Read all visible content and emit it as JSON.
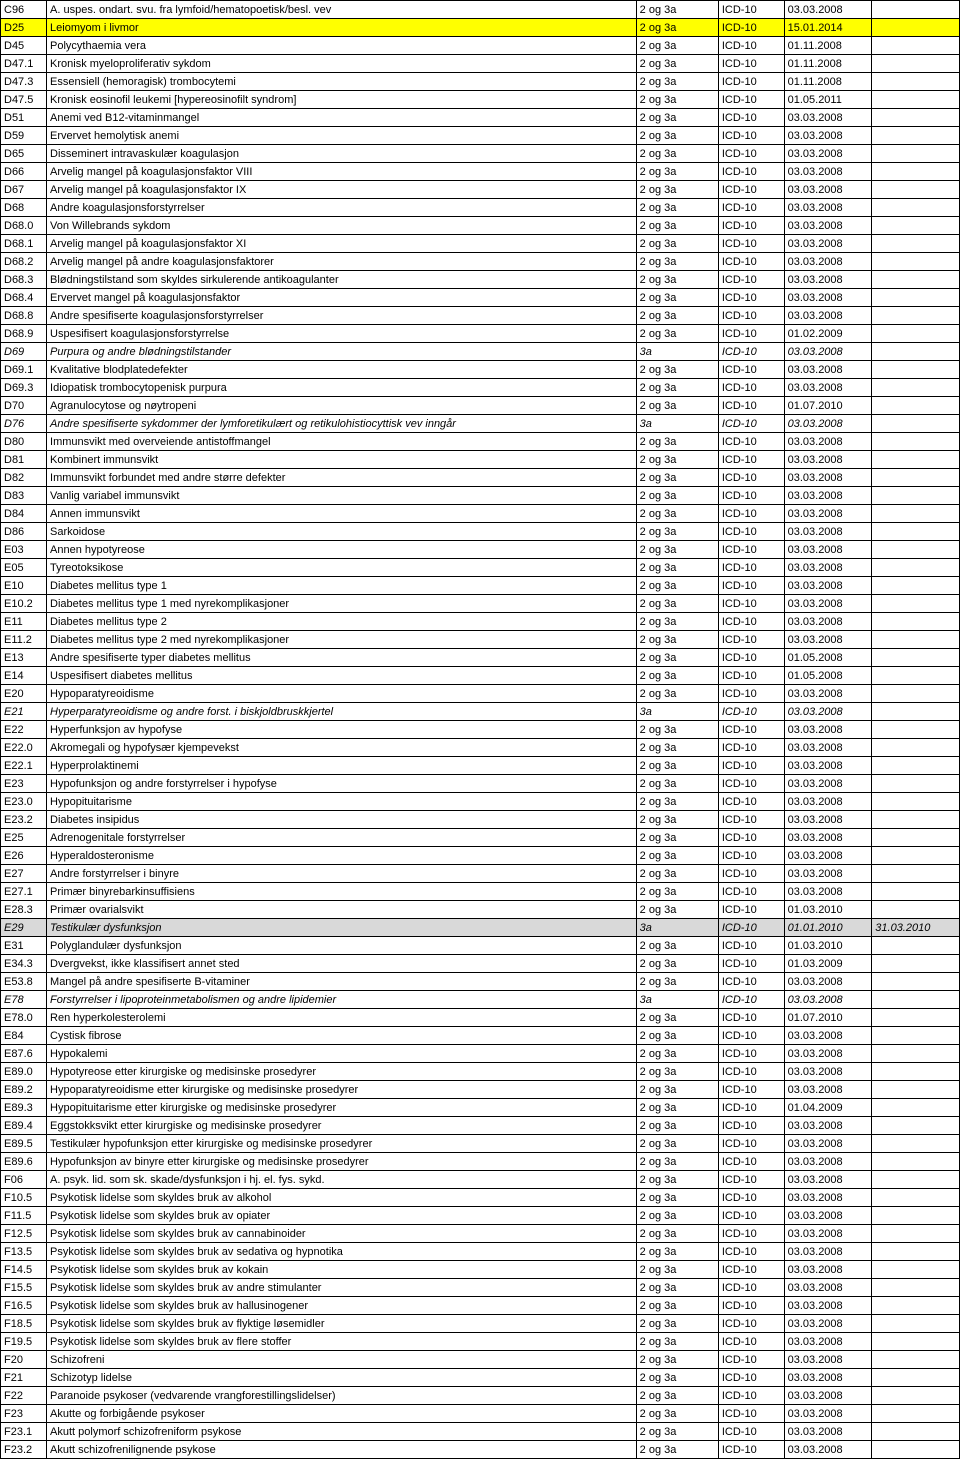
{
  "colors": {
    "yellow": "#ffff00",
    "grey": "#d9d9d9",
    "white": "#ffffff",
    "border": "#000000"
  },
  "rows": [
    {
      "code": "C96",
      "desc": "A. uspes. ondart. svu. fra lymfoid/hematopoetisk/besl. vev",
      "para": "2 og 3a",
      "icd": "ICD-10",
      "date": "03.03.2008",
      "extra": ""
    },
    {
      "code": "D25",
      "desc": "Leiomyom i livmor",
      "para": "2 og 3a",
      "icd": "ICD-10",
      "date": "15.01.2014",
      "extra": "",
      "bg": "yellow"
    },
    {
      "code": "D45",
      "desc": "Polycythaemia vera",
      "para": "2 og 3a",
      "icd": "ICD-10",
      "date": "01.11.2008",
      "extra": ""
    },
    {
      "code": "D47.1",
      "desc": "Kronisk myeloproliferativ sykdom",
      "para": "2 og 3a",
      "icd": "ICD-10",
      "date": "01.11.2008",
      "extra": ""
    },
    {
      "code": "D47.3",
      "desc": "Essensiell (hemoragisk) trombocytemi",
      "para": "2 og 3a",
      "icd": "ICD-10",
      "date": "01.11.2008",
      "extra": ""
    },
    {
      "code": "D47.5",
      "desc": "Kronisk eosinofil leukemi [hypereosinofilt syndrom]",
      "para": "2 og 3a",
      "icd": "ICD-10",
      "date": "01.05.2011",
      "extra": ""
    },
    {
      "code": "D51",
      "desc": "Anemi ved B12-vitaminmangel",
      "para": "2 og 3a",
      "icd": "ICD-10",
      "date": "03.03.2008",
      "extra": ""
    },
    {
      "code": "D59",
      "desc": "Ervervet hemolytisk anemi",
      "para": "2 og 3a",
      "icd": "ICD-10",
      "date": "03.03.2008",
      "extra": ""
    },
    {
      "code": "D65",
      "desc": "Disseminert intravaskulær koagulasjon",
      "para": "2 og 3a",
      "icd": "ICD-10",
      "date": "03.03.2008",
      "extra": ""
    },
    {
      "code": "D66",
      "desc": "Arvelig mangel på koagulasjonsfaktor VIII",
      "para": "2 og 3a",
      "icd": "ICD-10",
      "date": "03.03.2008",
      "extra": ""
    },
    {
      "code": "D67",
      "desc": "Arvelig mangel på koagulasjonsfaktor IX",
      "para": "2 og 3a",
      "icd": "ICD-10",
      "date": "03.03.2008",
      "extra": ""
    },
    {
      "code": "D68",
      "desc": "Andre koagulasjonsforstyrrelser",
      "para": "2 og 3a",
      "icd": "ICD-10",
      "date": "03.03.2008",
      "extra": ""
    },
    {
      "code": "D68.0",
      "desc": "Von Willebrands sykdom",
      "para": "2 og 3a",
      "icd": "ICD-10",
      "date": "03.03.2008",
      "extra": ""
    },
    {
      "code": "D68.1",
      "desc": "Arvelig mangel på koagulasjonsfaktor XI",
      "para": "2 og 3a",
      "icd": "ICD-10",
      "date": "03.03.2008",
      "extra": ""
    },
    {
      "code": "D68.2",
      "desc": "Arvelig mangel på andre koagulasjonsfaktorer",
      "para": "2 og 3a",
      "icd": "ICD-10",
      "date": "03.03.2008",
      "extra": ""
    },
    {
      "code": "D68.3",
      "desc": "Blødningstilstand som skyldes sirkulerende antikoagulanter",
      "para": "2 og 3a",
      "icd": "ICD-10",
      "date": "03.03.2008",
      "extra": ""
    },
    {
      "code": "D68.4",
      "desc": "Ervervet mangel på koagulasjonsfaktor",
      "para": "2 og 3a",
      "icd": "ICD-10",
      "date": "03.03.2008",
      "extra": ""
    },
    {
      "code": "D68.8",
      "desc": "Andre spesifiserte koagulasjonsforstyrrelser",
      "para": "2 og 3a",
      "icd": "ICD-10",
      "date": "03.03.2008",
      "extra": ""
    },
    {
      "code": "D68.9",
      "desc": "Uspesifisert koagulasjonsforstyrrelse",
      "para": "2 og 3a",
      "icd": "ICD-10",
      "date": "01.02.2009",
      "extra": ""
    },
    {
      "code": "D69",
      "desc": "Purpura og andre blødningstilstander",
      "para": "3a",
      "icd": "ICD-10",
      "date": "03.03.2008",
      "extra": "",
      "italic": true
    },
    {
      "code": "D69.1",
      "desc": "Kvalitative blodplatedefekter",
      "para": "2 og 3a",
      "icd": "ICD-10",
      "date": "03.03.2008",
      "extra": ""
    },
    {
      "code": "D69.3",
      "desc": "Idiopatisk trombocytopenisk purpura",
      "para": "2 og 3a",
      "icd": "ICD-10",
      "date": "03.03.2008",
      "extra": ""
    },
    {
      "code": "D70",
      "desc": "Agranulocytose og nøytropeni",
      "para": "2 og 3a",
      "icd": "ICD-10",
      "date": "01.07.2010",
      "extra": ""
    },
    {
      "code": "D76",
      "desc": "Andre spesifiserte sykdommer der lymforetikulært og retikulohistiocyttisk vev inngår",
      "para": "3a",
      "icd": "ICD-10",
      "date": "03.03.2008",
      "extra": "",
      "italic": true
    },
    {
      "code": "D80",
      "desc": "Immunsvikt med overveiende antistoffmangel",
      "para": "2 og 3a",
      "icd": "ICD-10",
      "date": "03.03.2008",
      "extra": ""
    },
    {
      "code": "D81",
      "desc": "Kombinert immunsvikt",
      "para": "2 og 3a",
      "icd": "ICD-10",
      "date": "03.03.2008",
      "extra": ""
    },
    {
      "code": "D82",
      "desc": "Immunsvikt forbundet med andre større defekter",
      "para": "2 og 3a",
      "icd": "ICD-10",
      "date": "03.03.2008",
      "extra": ""
    },
    {
      "code": "D83",
      "desc": "Vanlig variabel immunsvikt",
      "para": "2 og 3a",
      "icd": "ICD-10",
      "date": "03.03.2008",
      "extra": ""
    },
    {
      "code": "D84",
      "desc": "Annen immunsvikt",
      "para": "2 og 3a",
      "icd": "ICD-10",
      "date": "03.03.2008",
      "extra": ""
    },
    {
      "code": "D86",
      "desc": "Sarkoidose",
      "para": "2 og 3a",
      "icd": "ICD-10",
      "date": "03.03.2008",
      "extra": ""
    },
    {
      "code": "E03",
      "desc": "Annen hypotyreose",
      "para": "2 og 3a",
      "icd": "ICD-10",
      "date": "03.03.2008",
      "extra": ""
    },
    {
      "code": "E05",
      "desc": "Tyreotoksikose",
      "para": "2 og 3a",
      "icd": "ICD-10",
      "date": "03.03.2008",
      "extra": ""
    },
    {
      "code": "E10",
      "desc": "Diabetes mellitus type 1",
      "para": "2 og 3a",
      "icd": "ICD-10",
      "date": "03.03.2008",
      "extra": ""
    },
    {
      "code": "E10.2",
      "desc": "Diabetes mellitus type 1 med nyrekomplikasjoner",
      "para": "2 og 3a",
      "icd": "ICD-10",
      "date": "03.03.2008",
      "extra": ""
    },
    {
      "code": "E11",
      "desc": "Diabetes mellitus type 2",
      "para": "2 og 3a",
      "icd": "ICD-10",
      "date": "03.03.2008",
      "extra": ""
    },
    {
      "code": "E11.2",
      "desc": "Diabetes mellitus type 2 med nyrekomplikasjoner",
      "para": "2 og 3a",
      "icd": "ICD-10",
      "date": "03.03.2008",
      "extra": ""
    },
    {
      "code": "E13",
      "desc": "Andre spesifiserte typer diabetes mellitus",
      "para": "2 og 3a",
      "icd": "ICD-10",
      "date": "01.05.2008",
      "extra": ""
    },
    {
      "code": "E14",
      "desc": "Uspesifisert diabetes mellitus",
      "para": "2 og 3a",
      "icd": "ICD-10",
      "date": "01.05.2008",
      "extra": ""
    },
    {
      "code": "E20",
      "desc": "Hypoparatyreoidisme",
      "para": "2 og 3a",
      "icd": "ICD-10",
      "date": "03.03.2008",
      "extra": ""
    },
    {
      "code": "E21",
      "desc": "Hyperparatyreoidisme og andre forst. i biskjoldbruskkjertel",
      "para": "3a",
      "icd": "ICD-10",
      "date": "03.03.2008",
      "extra": "",
      "italic": true
    },
    {
      "code": "E22",
      "desc": "Hyperfunksjon av hypofyse",
      "para": "2 og 3a",
      "icd": "ICD-10",
      "date": "03.03.2008",
      "extra": ""
    },
    {
      "code": "E22.0",
      "desc": "Akromegali og hypofysær kjempevekst",
      "para": "2 og 3a",
      "icd": "ICD-10",
      "date": "03.03.2008",
      "extra": ""
    },
    {
      "code": "E22.1",
      "desc": "Hyperprolaktinemi",
      "para": "2 og 3a",
      "icd": "ICD-10",
      "date": "03.03.2008",
      "extra": ""
    },
    {
      "code": "E23",
      "desc": "Hypofunksjon og andre forstyrrelser i hypofyse",
      "para": "2 og 3a",
      "icd": "ICD-10",
      "date": "03.03.2008",
      "extra": ""
    },
    {
      "code": "E23.0",
      "desc": "Hypopituitarisme",
      "para": "2 og 3a",
      "icd": "ICD-10",
      "date": "03.03.2008",
      "extra": ""
    },
    {
      "code": "E23.2",
      "desc": "Diabetes insipidus",
      "para": "2 og 3a",
      "icd": "ICD-10",
      "date": "03.03.2008",
      "extra": ""
    },
    {
      "code": "E25",
      "desc": "Adrenogenitale forstyrrelser",
      "para": "2 og 3a",
      "icd": "ICD-10",
      "date": "03.03.2008",
      "extra": ""
    },
    {
      "code": "E26",
      "desc": "Hyperaldosteronisme",
      "para": "2 og 3a",
      "icd": "ICD-10",
      "date": "03.03.2008",
      "extra": ""
    },
    {
      "code": "E27",
      "desc": "Andre forstyrrelser i binyre",
      "para": "2 og 3a",
      "icd": "ICD-10",
      "date": "03.03.2008",
      "extra": ""
    },
    {
      "code": "E27.1",
      "desc": "Primær binyrebarkinsuffisiens",
      "para": "2 og 3a",
      "icd": "ICD-10",
      "date": "03.03.2008",
      "extra": ""
    },
    {
      "code": "E28.3",
      "desc": "Primær ovarialsvikt",
      "para": "2 og 3a",
      "icd": "ICD-10",
      "date": "01.03.2010",
      "extra": ""
    },
    {
      "code": "E29",
      "desc": "Testikulær dysfunksjon",
      "para": "3a",
      "icd": "ICD-10",
      "date": "01.01.2010",
      "extra": "31.03.2010",
      "italic": true,
      "bg": "grey"
    },
    {
      "code": "E31",
      "desc": "Polyglandulær dysfunksjon",
      "para": "2 og 3a",
      "icd": "ICD-10",
      "date": "01.03.2010",
      "extra": ""
    },
    {
      "code": "E34.3",
      "desc": "Dvergvekst, ikke klassifisert annet sted",
      "para": "2 og 3a",
      "icd": "ICD-10",
      "date": "01.03.2009",
      "extra": ""
    },
    {
      "code": "E53.8",
      "desc": "Mangel på andre spesifiserte B-vitaminer",
      "para": "2 og 3a",
      "icd": "ICD-10",
      "date": "03.03.2008",
      "extra": ""
    },
    {
      "code": "E78",
      "desc": "Forstyrrelser i lipoproteinmetabolismen og andre lipidemier",
      "para": "3a",
      "icd": "ICD-10",
      "date": "03.03.2008",
      "extra": "",
      "italic": true
    },
    {
      "code": "E78.0",
      "desc": "Ren hyperkolesterolemi",
      "para": "2 og 3a",
      "icd": "ICD-10",
      "date": "01.07.2010",
      "extra": ""
    },
    {
      "code": "E84",
      "desc": "Cystisk fibrose",
      "para": "2 og 3a",
      "icd": "ICD-10",
      "date": "03.03.2008",
      "extra": ""
    },
    {
      "code": "E87.6",
      "desc": "Hypokalemi",
      "para": "2 og 3a",
      "icd": "ICD-10",
      "date": "03.03.2008",
      "extra": ""
    },
    {
      "code": "E89.0",
      "desc": "Hypotyreose etter kirurgiske og medisinske prosedyrer",
      "para": "2 og 3a",
      "icd": "ICD-10",
      "date": "03.03.2008",
      "extra": ""
    },
    {
      "code": "E89.2",
      "desc": "Hypoparatyreoidisme etter kirurgiske og medisinske prosedyrer",
      "para": "2 og 3a",
      "icd": "ICD-10",
      "date": "03.03.2008",
      "extra": ""
    },
    {
      "code": "E89.3",
      "desc": "Hypopituitarisme etter kirurgiske og medisinske prosedyrer",
      "para": "2 og 3a",
      "icd": "ICD-10",
      "date": "01.04.2009",
      "extra": ""
    },
    {
      "code": "E89.4",
      "desc": "Eggstokksvikt etter kirurgiske og medisinske prosedyrer",
      "para": "2 og 3a",
      "icd": "ICD-10",
      "date": "03.03.2008",
      "extra": ""
    },
    {
      "code": "E89.5",
      "desc": "Testikulær hypofunksjon etter kirurgiske og medisinske prosedyrer",
      "para": "2 og 3a",
      "icd": "ICD-10",
      "date": "03.03.2008",
      "extra": ""
    },
    {
      "code": "E89.6",
      "desc": "Hypofunksjon av binyre etter kirurgiske og medisinske prosedyrer",
      "para": "2 og 3a",
      "icd": "ICD-10",
      "date": "03.03.2008",
      "extra": ""
    },
    {
      "code": "F06",
      "desc": "A. psyk. lid. som sk. skade/dysfunksjon i hj. el. fys. sykd.",
      "para": "2 og 3a",
      "icd": "ICD-10",
      "date": "03.03.2008",
      "extra": ""
    },
    {
      "code": "F10.5",
      "desc": "Psykotisk lidelse som skyldes bruk av alkohol",
      "para": "2 og 3a",
      "icd": "ICD-10",
      "date": "03.03.2008",
      "extra": ""
    },
    {
      "code": "F11.5",
      "desc": "Psykotisk lidelse som skyldes bruk av opiater",
      "para": "2 og 3a",
      "icd": "ICD-10",
      "date": "03.03.2008",
      "extra": ""
    },
    {
      "code": "F12.5",
      "desc": "Psykotisk lidelse som skyldes bruk av cannabinoider",
      "para": "2 og 3a",
      "icd": "ICD-10",
      "date": "03.03.2008",
      "extra": ""
    },
    {
      "code": "F13.5",
      "desc": "Psykotisk lidelse som skyldes bruk av sedativa og hypnotika",
      "para": "2 og 3a",
      "icd": "ICD-10",
      "date": "03.03.2008",
      "extra": ""
    },
    {
      "code": "F14.5",
      "desc": "Psykotisk lidelse som skyldes bruk av kokain",
      "para": "2 og 3a",
      "icd": "ICD-10",
      "date": "03.03.2008",
      "extra": ""
    },
    {
      "code": "F15.5",
      "desc": "Psykotisk lidelse som skyldes bruk av andre stimulanter",
      "para": "2 og 3a",
      "icd": "ICD-10",
      "date": "03.03.2008",
      "extra": ""
    },
    {
      "code": "F16.5",
      "desc": "Psykotisk lidelse som skyldes bruk av hallusinogener",
      "para": "2 og 3a",
      "icd": "ICD-10",
      "date": "03.03.2008",
      "extra": ""
    },
    {
      "code": "F18.5",
      "desc": "Psykotisk lidelse som skyldes bruk av flyktige løsemidler",
      "para": "2 og 3a",
      "icd": "ICD-10",
      "date": "03.03.2008",
      "extra": ""
    },
    {
      "code": "F19.5",
      "desc": "Psykotisk lidelse som skyldes bruk av flere stoffer",
      "para": "2 og 3a",
      "icd": "ICD-10",
      "date": "03.03.2008",
      "extra": ""
    },
    {
      "code": "F20",
      "desc": "Schizofreni",
      "para": "2 og 3a",
      "icd": "ICD-10",
      "date": "03.03.2008",
      "extra": ""
    },
    {
      "code": "F21",
      "desc": "Schizotyp lidelse",
      "para": "2 og 3a",
      "icd": "ICD-10",
      "date": "03.03.2008",
      "extra": ""
    },
    {
      "code": "F22",
      "desc": "Paranoide psykoser (vedvarende vrangforestillingslidelser)",
      "para": "2 og 3a",
      "icd": "ICD-10",
      "date": "03.03.2008",
      "extra": ""
    },
    {
      "code": "F23",
      "desc": "Akutte og forbigående psykoser",
      "para": "2 og 3a",
      "icd": "ICD-10",
      "date": "03.03.2008",
      "extra": ""
    },
    {
      "code": "F23.1",
      "desc": "Akutt polymorf schizofreniform psykose",
      "para": "2 og 3a",
      "icd": "ICD-10",
      "date": "03.03.2008",
      "extra": ""
    },
    {
      "code": "F23.2",
      "desc": "Akutt schizofrenilignende psykose",
      "para": "2 og 3a",
      "icd": "ICD-10",
      "date": "03.03.2008",
      "extra": ""
    }
  ]
}
